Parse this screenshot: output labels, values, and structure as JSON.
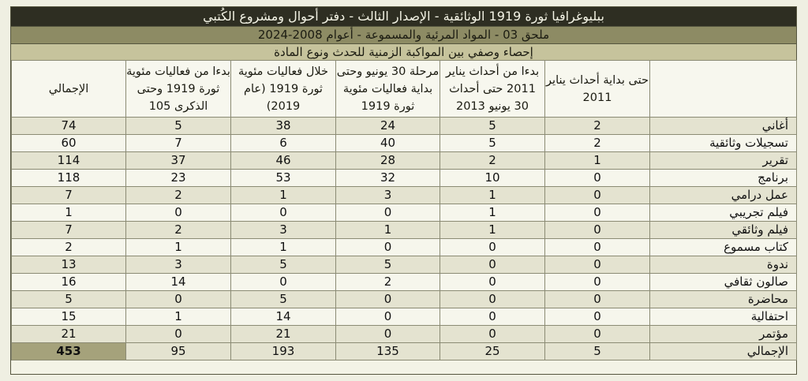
{
  "title_line1": "ببليوغرافيا ثورة 1919 الوثائقية - الإصدار الثالث - دفتر أحوال ومشروع الكُتبي",
  "title_line2": "ملحق 03 - المواد المرئية والمسموعة - أعوام 2008-2024",
  "title_line3": "إحصاء وصفي بين المواكبة الزمنية للحدث ونوع المادة",
  "columns": [
    "",
    "حتى بداية أحداث يناير 2011",
    "بدءا من أحداث يناير 2011 حتى أحداث 30 يونيو 2013",
    "مرحلة 30 يونيو وحتى بداية فعاليات مئوية ثورة 1919",
    "خلال فعاليات مئوية ثورة 1919 (عام 2019)",
    "بدءا من فعاليات مئوية ثورة 1919 وحتى الذكرى 105",
    "الإجمالي"
  ],
  "rows": [
    [
      "أغاني",
      "2",
      "5",
      "24",
      "38",
      "5",
      "74"
    ],
    [
      "تسجيلات وثائقية",
      "2",
      "5",
      "40",
      "6",
      "7",
      "60"
    ],
    [
      "تقرير",
      "1",
      "2",
      "28",
      "46",
      "37",
      "114"
    ],
    [
      "برنامج",
      "0",
      "10",
      "32",
      "53",
      "23",
      "118"
    ],
    [
      "عمل درامي",
      "0",
      "1",
      "3",
      "1",
      "2",
      "7"
    ],
    [
      "فيلم تجريبي",
      "0",
      "1",
      "0",
      "0",
      "0",
      "1"
    ],
    [
      "فيلم وثائقي",
      "0",
      "1",
      "1",
      "3",
      "2",
      "7"
    ],
    [
      "كتاب مسموع",
      "0",
      "0",
      "0",
      "1",
      "1",
      "2"
    ],
    [
      "ندوة",
      "0",
      "0",
      "5",
      "5",
      "3",
      "13"
    ],
    [
      "صالون ثقافي",
      "0",
      "0",
      "2",
      "0",
      "14",
      "16"
    ],
    [
      "محاضرة",
      "0",
      "0",
      "0",
      "5",
      "0",
      "5"
    ],
    [
      "احتفالية",
      "0",
      "0",
      "0",
      "14",
      "1",
      "15"
    ],
    [
      "مؤتمر",
      "0",
      "0",
      "0",
      "21",
      "0",
      "21"
    ]
  ],
  "totals": [
    "الإجمالي",
    "5",
    "25",
    "135",
    "193",
    "95",
    "453"
  ]
}
